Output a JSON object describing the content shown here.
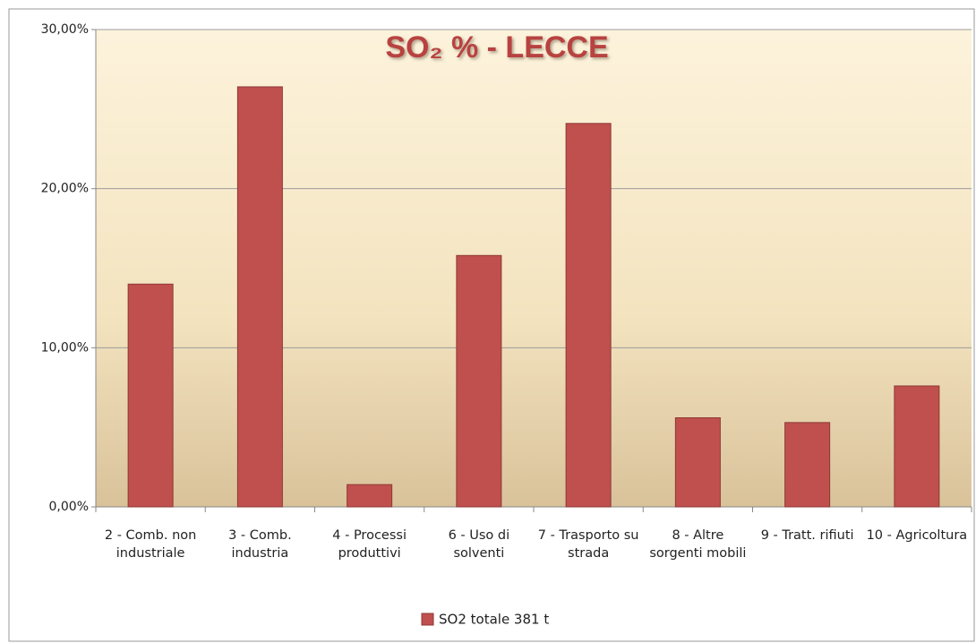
{
  "chart_data": {
    "type": "bar",
    "title": "SO₂ %  - LECCE",
    "categories": [
      "2 - Comb. non industriale",
      "3 - Comb. industria",
      "4 - Processi produttivi",
      "6 - Uso di solventi",
      "7 - Trasporto su strada",
      "8 - Altre sorgenti mobili",
      "9 - Tratt. rifiuti",
      "10 - Agricoltura"
    ],
    "series": [
      {
        "name": "SO2 totale 381 t",
        "color": "#c0504d",
        "values": [
          14.0,
          26.4,
          1.4,
          15.8,
          24.1,
          5.6,
          5.3,
          7.6
        ]
      }
    ],
    "ylim": [
      0,
      30
    ],
    "yticks": [
      {
        "value": 0,
        "label": "0,00%"
      },
      {
        "value": 10,
        "label": "10,00%"
      },
      {
        "value": 20,
        "label": "20,00%"
      },
      {
        "value": 30,
        "label": "30,00%"
      }
    ],
    "grid": true,
    "legend": "bottom"
  }
}
